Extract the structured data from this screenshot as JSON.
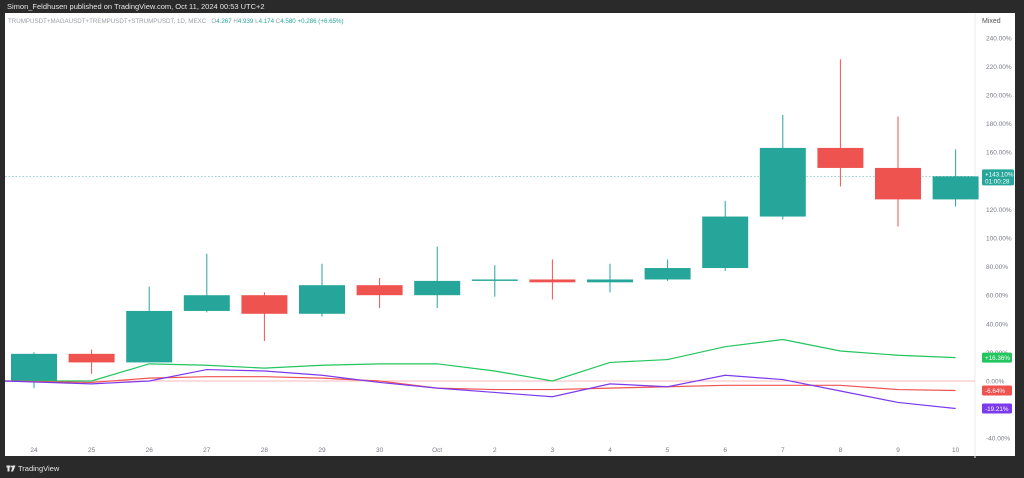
{
  "publisher": "Simon_Feldhusen published on TradingView.com, Oct 11, 2024 00:53 UTC+2",
  "symbol": "TRUMPUSDT+MAGAUSDT+TREMPUSDT+STRUMPUSDT, 1D, MEXC",
  "ohlc": {
    "o_label": "O",
    "o": "4.267",
    "h_label": "H",
    "h": "4.939",
    "l_label": "L",
    "l": "4.174",
    "c_label": "C",
    "c": "4.580",
    "chg": "+0.286 (+6.65%)"
  },
  "scale_mode": "Mixed",
  "brand": "TradingView",
  "colors": {
    "up": "#26a69a",
    "down": "#ef5350",
    "green_line": "#22c55e",
    "red_line": "#ef5350",
    "purple_line": "#7c3aed",
    "price_line": "#26a69a",
    "zero_line": "#ef5350"
  },
  "chart_data": {
    "type": "candlestick",
    "y_unit": "percent",
    "ylim": [
      -42,
      244
    ],
    "y_ticks": [
      -40,
      -20,
      0,
      20,
      40,
      60,
      80,
      100,
      120,
      140,
      160,
      180,
      200,
      220,
      240
    ],
    "y_tick_labels": [
      "-40.00%",
      "-20.00%",
      "0.00%",
      "20.00%",
      "40.00%",
      "60.00%",
      "80.00%",
      "100.00%",
      "120.00%",
      "140.00%",
      "160.00%",
      "180.00%",
      "200.00%",
      "220.00%",
      "240.00%"
    ],
    "x_labels": [
      "24",
      "25",
      "26",
      "27",
      "28",
      "29",
      "30",
      "Oct",
      "2",
      "3",
      "4",
      "5",
      "6",
      "7",
      "8",
      "9",
      "10"
    ],
    "candles": [
      {
        "o": 0,
        "h": 20,
        "l": -5,
        "c": 19
      },
      {
        "o": 19,
        "h": 22,
        "l": 5,
        "c": 13
      },
      {
        "o": 13,
        "h": 66,
        "l": 13,
        "c": 49
      },
      {
        "o": 49,
        "h": 89,
        "l": 48,
        "c": 60
      },
      {
        "o": 60,
        "h": 62,
        "l": 28,
        "c": 47
      },
      {
        "o": 47,
        "h": 82,
        "l": 45,
        "c": 67
      },
      {
        "o": 67,
        "h": 72,
        "l": 51,
        "c": 60
      },
      {
        "o": 60,
        "h": 94,
        "l": 51,
        "c": 70
      },
      {
        "o": 70,
        "h": 81,
        "l": 59,
        "c": 71
      },
      {
        "o": 71,
        "h": 85,
        "l": 57,
        "c": 69
      },
      {
        "o": 69,
        "h": 82,
        "l": 62,
        "c": 71
      },
      {
        "o": 71,
        "h": 85,
        "l": 70,
        "c": 79
      },
      {
        "o": 79,
        "h": 126,
        "l": 77,
        "c": 115
      },
      {
        "o": 115,
        "h": 186,
        "l": 113,
        "c": 163
      },
      {
        "o": 163,
        "h": 225,
        "l": 136,
        "c": 149
      },
      {
        "o": 149,
        "h": 185,
        "l": 108,
        "c": 127
      },
      {
        "o": 127,
        "h": 162,
        "l": 122,
        "c": 143.1
      }
    ],
    "series": [
      {
        "values": [
          0,
          0,
          12,
          11,
          9,
          11,
          12,
          12,
          7,
          0,
          13,
          15,
          24,
          29,
          21,
          18,
          16.36
        ]
      },
      {
        "values": [
          0,
          -1,
          2,
          3,
          3,
          2,
          0,
          -5,
          -6,
          -6,
          -5,
          -4,
          -3,
          -3,
          -3,
          -6,
          -6.64
        ]
      },
      {
        "values": [
          0,
          -2,
          0,
          8,
          7,
          4,
          -1,
          -5,
          -8,
          -11,
          -2,
          -4,
          4,
          1,
          -7,
          -15,
          -19.21
        ]
      }
    ],
    "price_tag": {
      "value_label": "+143.10%",
      "timer": "01:00:28"
    },
    "line_tags": [
      "+16.36%",
      "-6.64%",
      "-19.21%"
    ]
  }
}
